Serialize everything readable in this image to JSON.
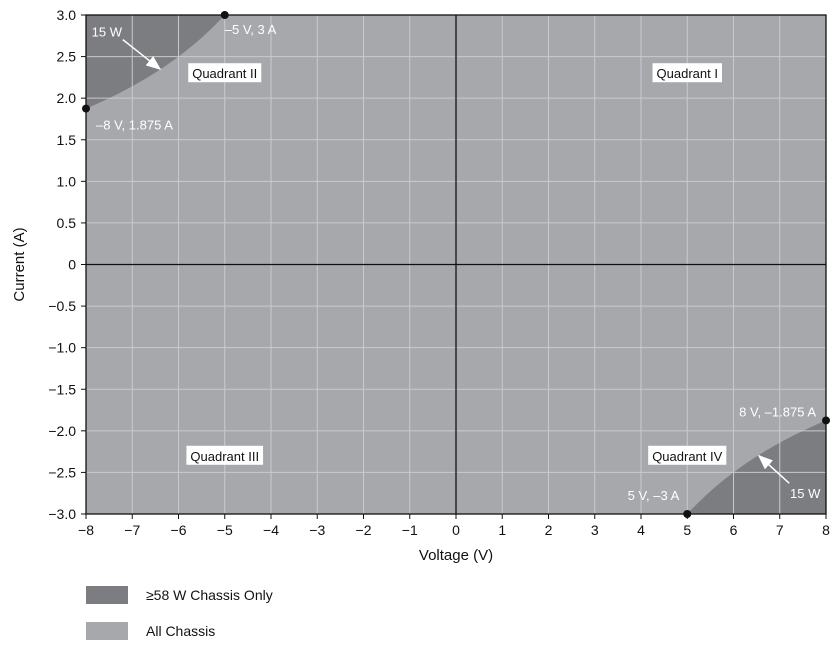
{
  "chart_data": {
    "type": "area",
    "xlabel": "Voltage (V)",
    "ylabel": "Current (A)",
    "xlim": [
      -8,
      8
    ],
    "ylim": [
      -3,
      3
    ],
    "x_ticks": [
      "−8",
      "−7",
      "−6",
      "−5",
      "−4",
      "−3",
      "−2",
      "−1",
      "0",
      "1",
      "2",
      "3",
      "4",
      "5",
      "6",
      "7",
      "8"
    ],
    "y_ticks": [
      "3.0",
      "2.5",
      "2.0",
      "1.5",
      "1.0",
      "0.5",
      "0",
      "−0.5",
      "−1.0",
      "−1.5",
      "−2.0",
      "−2.5",
      "−3.0"
    ],
    "grid": true,
    "quadrants": [
      {
        "label": "Quadrant II",
        "x": -5,
        "y": 2.3
      },
      {
        "label": "Quadrant I",
        "x": 5,
        "y": 2.3
      },
      {
        "label": "Quadrant III",
        "x": -5,
        "y": -2.3
      },
      {
        "label": "Quadrant IV",
        "x": 5,
        "y": -2.3
      }
    ],
    "points": [
      {
        "label": "–5 V, 3 A",
        "x": -5,
        "y": 3
      },
      {
        "label": "–8 V, 1.875 A",
        "x": -8,
        "y": 1.875
      },
      {
        "label": "8 V, –1.875 A",
        "x": 8,
        "y": -1.875
      },
      {
        "label": "5 V, –3 A",
        "x": 5,
        "y": -3
      }
    ],
    "annotations": [
      {
        "label": "15 W",
        "x": -7.55,
        "y": 2.8,
        "arrow_to": [
          -6.4,
          2.35
        ]
      },
      {
        "label": "15 W",
        "x": 7.55,
        "y": -2.75,
        "arrow_to": [
          6.55,
          -2.3
        ]
      }
    ],
    "series": [
      {
        "name": "≥58 W Chassis Only",
        "color": "#7b7d80",
        "power_limit_w": 15
      },
      {
        "name": "All Chassis",
        "color": "#a6a8ab"
      }
    ]
  }
}
